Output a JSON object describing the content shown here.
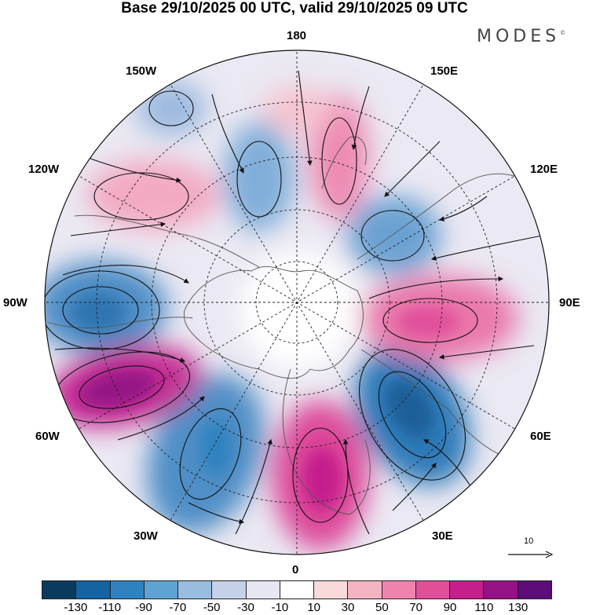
{
  "header": {
    "title": "Base 29/10/2025 00 UTC, valid 29/10/2025 09 UTC",
    "brand": "MODES",
    "brand_mark": "©"
  },
  "map": {
    "projection": "polar-stereographic-north",
    "longitude_labels": {
      "top": "180",
      "upper_right": "150E",
      "upper_left": "150W",
      "right_upper": "120E",
      "left_upper": "120W",
      "right": "90E",
      "left": "90W",
      "right_lower": "60E",
      "left_lower": "60W",
      "lower_right": "30E",
      "lower_left": "30W",
      "bottom": "0"
    },
    "reference_vector_label": "10"
  },
  "colorbar": {
    "colors": [
      "#0a3b5e",
      "#1563a0",
      "#2f82bf",
      "#5ea3d3",
      "#98bde0",
      "#c4d1e9",
      "#e7e6f3",
      "#ffffff",
      "#f9dada",
      "#f4b3c1",
      "#ee84ad",
      "#e14f9b",
      "#c51f8c",
      "#951286",
      "#5c0d77"
    ],
    "tick_labels": [
      "-130",
      "-110",
      "-90",
      "-70",
      "-50",
      "-30",
      "-10",
      "10",
      "30",
      "50",
      "70",
      "90",
      "110",
      "130"
    ]
  }
}
